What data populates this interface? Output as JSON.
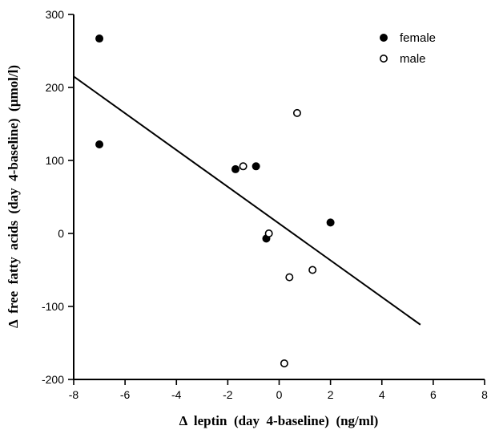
{
  "chart_data": {
    "type": "scatter",
    "title": "",
    "xlabel": "Δ  leptin  (day  4-baseline)  (ng/ml)",
    "ylabel": "Δ  free  fatty  acids  (day  4-baseline)  (µmol/l)",
    "xlim": [
      -8,
      8
    ],
    "ylim": [
      -200,
      300
    ],
    "x_ticks": [
      -8,
      -6,
      -4,
      -2,
      0,
      2,
      4,
      6,
      8
    ],
    "y_ticks": [
      -200,
      -100,
      0,
      100,
      200,
      300
    ],
    "x_tick_labels": [
      "-8",
      "-6",
      "-4",
      "-2",
      "0",
      "2",
      "4",
      "6",
      "8"
    ],
    "y_tick_labels": [
      "-200",
      "-100",
      "0",
      "100",
      "200",
      "300"
    ],
    "grid": false,
    "legend_position": "top-right",
    "series": [
      {
        "name": "female",
        "marker": "filled-circle",
        "color": "#000000",
        "x": [
          -7.0,
          -7.0,
          -1.7,
          -0.9,
          -0.5,
          2.0
        ],
        "y": [
          267,
          122,
          88,
          92,
          -7,
          15
        ]
      },
      {
        "name": "male",
        "marker": "open-circle",
        "color": "#000000",
        "x": [
          -1.4,
          -0.4,
          0.7,
          0.4,
          1.3,
          0.2
        ],
        "y": [
          92,
          0,
          165,
          -60,
          -50,
          -178
        ]
      }
    ],
    "regression_line": {
      "x": [
        -8.0,
        5.5
      ],
      "y": [
        215,
        -125
      ]
    }
  }
}
